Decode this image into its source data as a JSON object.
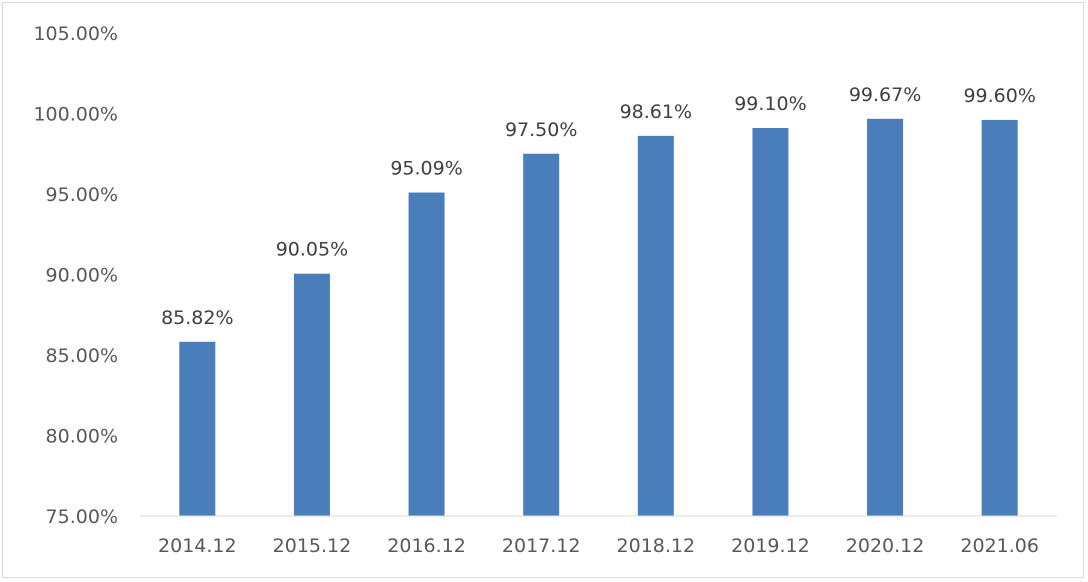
{
  "chart_data": {
    "type": "bar",
    "categories": [
      "2014.12",
      "2015.12",
      "2016.12",
      "2017.12",
      "2018.12",
      "2019.12",
      "2020.12",
      "2021.06"
    ],
    "values": [
      85.82,
      90.05,
      95.09,
      97.5,
      98.61,
      99.1,
      99.67,
      99.6
    ],
    "data_labels": [
      "85.82%",
      "90.05%",
      "95.09%",
      "97.50%",
      "98.61%",
      "99.10%",
      "99.67%",
      "99.60%"
    ],
    "ylim": [
      75,
      105
    ],
    "y_ticks": [
      75,
      80,
      85,
      90,
      95,
      100,
      105
    ],
    "y_tick_labels": [
      "75.00%",
      "80.00%",
      "85.00%",
      "90.00%",
      "95.00%",
      "100.00%",
      "105.00%"
    ],
    "title": "",
    "xlabel": "",
    "ylabel": "",
    "grid": false,
    "bar_color": "#4a7ebb"
  }
}
